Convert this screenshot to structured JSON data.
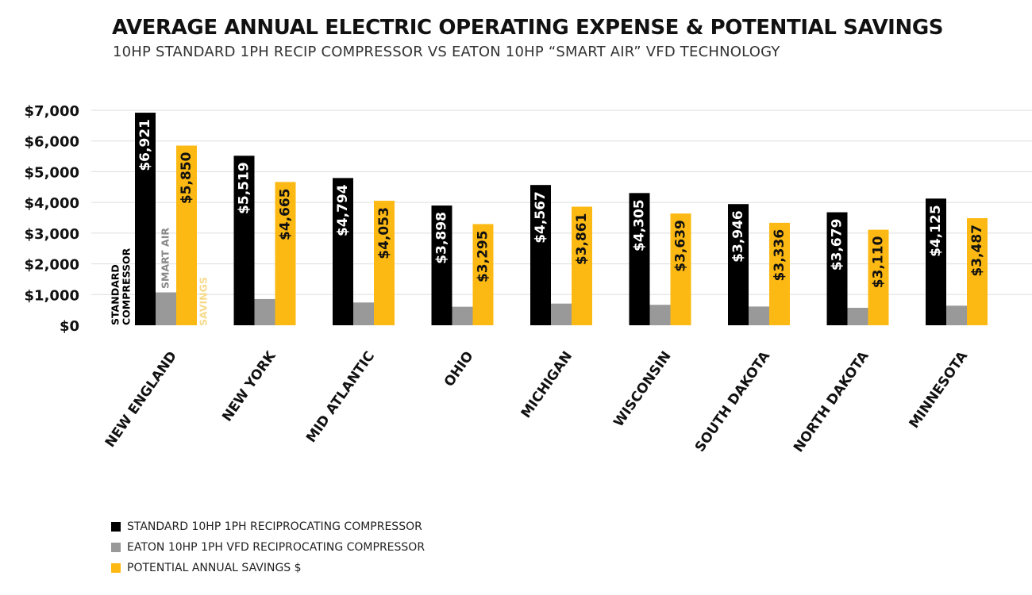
{
  "chart_data": {
    "type": "bar",
    "title": "AVERAGE ANNUAL ELECTRIC OPERATING EXPENSE & POTENTIAL SAVINGS",
    "subtitle": "10HP STANDARD 1PH RECIP COMPRESSOR VS EATON 10HP “SMART AIR” VFD TECHNOLOGY",
    "xlabel": "",
    "ylabel": "",
    "ylim": [
      0,
      7000
    ],
    "yticks": [
      {
        "value": 0,
        "label": "$0"
      },
      {
        "value": 1000,
        "label": "$1,000"
      },
      {
        "value": 2000,
        "label": "$2,000"
      },
      {
        "value": 3000,
        "label": "$3,000"
      },
      {
        "value": 4000,
        "label": "$4,000"
      },
      {
        "value": 5000,
        "label": "$5,000"
      },
      {
        "value": 6000,
        "label": "$6,000"
      },
      {
        "value": 7000,
        "label": "$7,000"
      }
    ],
    "grid": true,
    "categories": [
      "NEW ENGLAND",
      "NEW YORK",
      "MID ATLANTIC",
      "OHIO",
      "MICHIGAN",
      "WISCONSIN",
      "SOUTH DAKOTA",
      "NORTH DAKOTA",
      "MINNESOTA"
    ],
    "series": [
      {
        "name": "STANDARD 10HP 1PH RECIPROCATING COMPRESSOR",
        "color": "#000000",
        "label_color": "#ffffff",
        "values": [
          6921,
          5519,
          4794,
          3898,
          4567,
          4305,
          3946,
          3679,
          4125
        ],
        "labels": [
          "$6,921",
          "$5,519",
          "$4,794",
          "$3,898",
          "$4,567",
          "$4,305",
          "$3,946",
          "$3,679",
          "$4,125"
        ]
      },
      {
        "name": "EATON 10HP 1PH VFD RECIPROCATING COMPRESSOR",
        "color": "#999999",
        "label_color": "#ffffff",
        "values": [
          1071,
          854,
          741,
          603,
          706,
          666,
          610,
          569,
          638
        ],
        "labels": [
          "",
          "",
          "",
          "",
          "",
          "",
          "",
          "",
          ""
        ]
      },
      {
        "name": "POTENTIAL ANNUAL SAVINGS $",
        "color": "#FDB913",
        "label_color": "#111111",
        "values": [
          5850,
          4665,
          4053,
          3295,
          3861,
          3639,
          3336,
          3110,
          3487
        ],
        "labels": [
          "$5,850",
          "$4,665",
          "$4,053",
          "$3,295",
          "$3,861",
          "$3,639",
          "$3,336",
          "$3,110",
          "$3,487"
        ]
      }
    ],
    "annotations": [
      {
        "text": "STANDARD",
        "color": "#000000"
      },
      {
        "text": "COMPRESSOR",
        "color": "#000000"
      },
      {
        "text": "SMART AIR",
        "color": "#888888"
      },
      {
        "text": "SAVINGS",
        "color": "#F6D98A"
      }
    ],
    "legend_position": "bottom-left"
  },
  "legend": {
    "items": [
      {
        "label": "STANDARD 10HP 1PH RECIPROCATING COMPRESSOR",
        "color": "#000000"
      },
      {
        "label": "EATON 10HP 1PH VFD RECIPROCATING COMPRESSOR",
        "color": "#999999"
      },
      {
        "label": "POTENTIAL ANNUAL SAVINGS $",
        "color": "#FDB913"
      }
    ]
  }
}
